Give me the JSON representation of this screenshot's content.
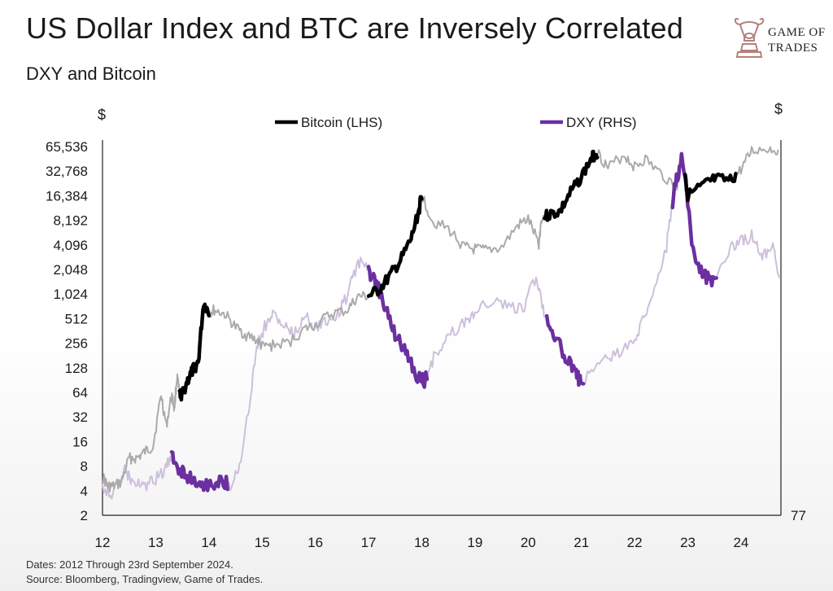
{
  "header": {
    "title": "US Dollar Index and BTC are Inversely Correlated",
    "subtitle": "DXY  and Bitcoin"
  },
  "logo": {
    "line1": "GAME OF",
    "line2": "TRADES",
    "icon": "bull-chess-knight-icon",
    "color": "#b5807a"
  },
  "footer": {
    "dates": "Dates: 2012 Through 23rd September 2024.",
    "source": "Source: Bloomberg, Tradingview, Game of Trades."
  },
  "chart_data": {
    "type": "line",
    "left_axis": {
      "unit_label": "$",
      "scale": "log2",
      "ticks": [
        "65,536",
        "32,768",
        "16,384",
        "8,192",
        "4,096",
        "2,048",
        "1,024",
        "512",
        "256",
        "128",
        "64",
        "32",
        "16",
        "8",
        "4",
        "2"
      ],
      "tick_values": [
        65536,
        32768,
        16384,
        8192,
        4096,
        2048,
        1024,
        512,
        256,
        128,
        64,
        32,
        16,
        8,
        4,
        2
      ],
      "range": [
        2,
        65536
      ]
    },
    "right_axis": {
      "unit_label": "$",
      "ticks": [
        "77"
      ],
      "tick_values": [
        77
      ]
    },
    "x_axis": {
      "ticks": [
        "12",
        "13",
        "14",
        "15",
        "16",
        "17",
        "18",
        "19",
        "20",
        "21",
        "22",
        "23",
        "24"
      ],
      "range": [
        12,
        24.75
      ]
    },
    "legend": {
      "placement": "top-center",
      "entries": [
        {
          "label": "Bitcoin (LHS)",
          "color": "#000000"
        },
        {
          "label": "DXY (RHS)",
          "color": "#6b2fa0"
        }
      ]
    },
    "colors": {
      "bitcoin": "#000000",
      "bitcoin_faded": "#aaaaaa",
      "dxy": "#6b2fa0",
      "dxy_faded": "#cdbfdc"
    },
    "series": [
      {
        "name": "Bitcoin (LHS)",
        "axis": "left",
        "x": [
          12.0,
          12.1,
          12.2,
          12.35,
          12.5,
          12.65,
          12.8,
          12.95,
          13.1,
          13.2,
          13.3,
          13.35,
          13.4,
          13.45,
          13.5,
          13.6,
          13.7,
          13.8,
          13.9,
          14.0,
          14.1,
          14.3,
          14.5,
          14.7,
          14.9,
          15.0,
          15.2,
          15.5,
          15.8,
          16.0,
          16.3,
          16.6,
          16.8,
          17.0,
          17.2,
          17.4,
          17.6,
          17.8,
          17.95,
          18.0,
          18.2,
          18.5,
          18.8,
          19.0,
          19.2,
          19.5,
          19.8,
          20.0,
          20.2,
          20.25,
          20.4,
          20.6,
          20.8,
          21.0,
          21.2,
          21.3,
          21.5,
          21.8,
          22.0,
          22.2,
          22.5,
          22.8,
          22.9,
          23.0,
          23.3,
          23.5,
          23.8,
          24.0,
          24.2,
          24.5,
          24.7
        ],
        "y": [
          6,
          4.5,
          4.5,
          5,
          10,
          10,
          12,
          14,
          60,
          25,
          60,
          40,
          100,
          60,
          60,
          90,
          120,
          150,
          800,
          600,
          650,
          580,
          400,
          320,
          280,
          230,
          240,
          260,
          380,
          430,
          580,
          650,
          950,
          960,
          1150,
          1700,
          2600,
          4800,
          11000,
          17000,
          8000,
          6400,
          3800,
          3600,
          3500,
          3800,
          7000,
          8500,
          4200,
          8800,
          9600,
          10500,
          18000,
          28000,
          48000,
          56000,
          36000,
          52000,
          37000,
          46000,
          30000,
          21000,
          58000,
          16500,
          22000,
          26000,
          25000,
          34000,
          58000,
          62000,
          60000
        ],
        "highlight_ranges": [
          [
            13.45,
            14.0
          ],
          [
            17.0,
            18.0
          ],
          [
            20.3,
            21.3
          ],
          [
            22.95,
            23.9
          ]
        ]
      },
      {
        "name": "DXY (RHS)",
        "axis": "right",
        "x": [
          12.0,
          12.2,
          12.4,
          12.55,
          12.75,
          12.95,
          13.15,
          13.3,
          13.45,
          13.6,
          13.8,
          14.0,
          14.2,
          14.4,
          14.6,
          14.75,
          14.9,
          15.05,
          15.2,
          15.4,
          15.6,
          15.8,
          16.0,
          16.2,
          16.4,
          16.6,
          16.8,
          17.0,
          17.15,
          17.3,
          17.5,
          17.7,
          17.9,
          18.05,
          18.25,
          18.5,
          18.8,
          19.0,
          19.3,
          19.6,
          19.9,
          20.15,
          20.3,
          20.5,
          20.7,
          20.9,
          21.0,
          21.3,
          21.6,
          21.9,
          22.1,
          22.3,
          22.6,
          22.75,
          22.9,
          23.1,
          23.3,
          23.5,
          23.8,
          24.0,
          24.2,
          24.4,
          24.6,
          24.72
        ],
        "y": [
          80.0,
          79.0,
          81.5,
          80.5,
          79.8,
          80.4,
          81.4,
          82.8,
          81.6,
          80.9,
          80.3,
          80.0,
          80.5,
          80.1,
          82.2,
          87.8,
          94.0,
          96.0,
          97.2,
          96.0,
          95.0,
          97.1,
          96.0,
          96.5,
          97.0,
          99.0,
          102.5,
          101.5,
          100.2,
          98.2,
          95.0,
          93.5,
          91.0,
          90.4,
          93.2,
          95.0,
          96.2,
          97.5,
          98.5,
          98.0,
          97.6,
          101.0,
          97.5,
          95.0,
          93.0,
          91.0,
          90.4,
          92.1,
          93.0,
          94.0,
          95.6,
          98.8,
          104.0,
          110.0,
          113.0,
          103.6,
          101.0,
          100.5,
          104.0,
          104.5,
          105.0,
          103.0,
          104.0,
          100.8
        ],
        "highlight_ranges": [
          [
            13.3,
            14.35
          ],
          [
            17.0,
            18.1
          ],
          [
            20.35,
            21.05
          ],
          [
            22.7,
            23.55
          ]
        ]
      }
    ]
  }
}
